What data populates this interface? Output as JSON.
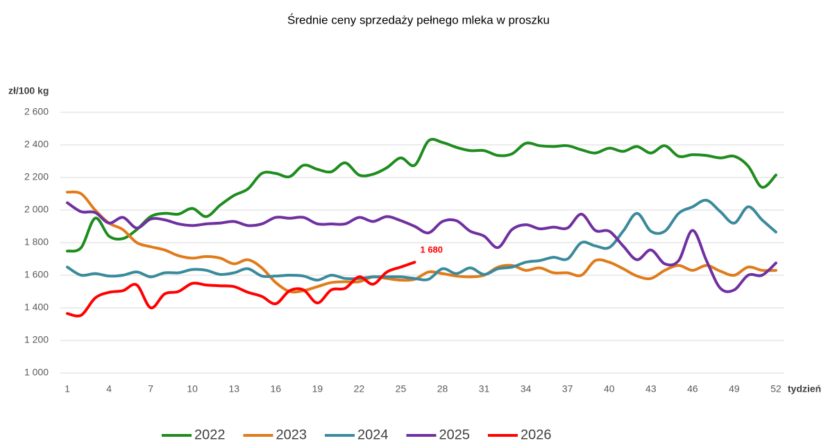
{
  "chart_data": {
    "type": "line",
    "title": "Średnie ceny sprzedaży pełnego mleka w proszku",
    "y_label": "zł/100 kg",
    "x_label": "tydzień",
    "x": [
      1,
      2,
      3,
      4,
      5,
      6,
      7,
      8,
      9,
      10,
      11,
      12,
      13,
      14,
      15,
      16,
      17,
      18,
      19,
      20,
      21,
      22,
      23,
      24,
      25,
      26,
      27,
      28,
      29,
      30,
      31,
      32,
      33,
      34,
      35,
      36,
      37,
      38,
      39,
      40,
      41,
      42,
      43,
      44,
      45,
      46,
      47,
      48,
      49,
      50,
      51,
      52
    ],
    "xlim": [
      1,
      52
    ],
    "xticks": [
      1,
      4,
      7,
      10,
      13,
      16,
      19,
      22,
      25,
      28,
      31,
      34,
      37,
      40,
      43,
      46,
      49,
      52
    ],
    "ylim": [
      1000,
      2600
    ],
    "yticks": [
      {
        "value": 1000,
        "label": "1 000"
      },
      {
        "value": 1200,
        "label": "1 200"
      },
      {
        "value": 1400,
        "label": "1 400"
      },
      {
        "value": 1600,
        "label": "1 600"
      },
      {
        "value": 1800,
        "label": "1 800"
      },
      {
        "value": 2000,
        "label": "2 000"
      },
      {
        "value": 2200,
        "label": "2 200"
      },
      {
        "value": 2400,
        "label": "2 400"
      },
      {
        "value": 2600,
        "label": "2 600"
      }
    ],
    "grid": true,
    "legend": "bottom",
    "series": [
      {
        "name": "2022",
        "color": "#1e8c1e",
        "values": [
          1748,
          1770,
          1950,
          1840,
          1825,
          1880,
          1960,
          1980,
          1975,
          2010,
          1960,
          2030,
          2090,
          2130,
          2225,
          2225,
          2205,
          2275,
          2250,
          2235,
          2290,
          2215,
          2220,
          2260,
          2320,
          2275,
          2425,
          2415,
          2385,
          2365,
          2365,
          2335,
          2345,
          2410,
          2395,
          2390,
          2395,
          2370,
          2350,
          2380,
          2360,
          2390,
          2350,
          2395,
          2330,
          2340,
          2335,
          2320,
          2330,
          2270,
          2140,
          2215
        ]
      },
      {
        "name": "2023",
        "color": "#e07b1a",
        "values": [
          2110,
          2100,
          2000,
          1920,
          1880,
          1800,
          1775,
          1755,
          1720,
          1705,
          1715,
          1705,
          1670,
          1695,
          1645,
          1555,
          1500,
          1505,
          1530,
          1555,
          1560,
          1560,
          1590,
          1580,
          1570,
          1575,
          1620,
          1610,
          1595,
          1590,
          1600,
          1650,
          1660,
          1630,
          1645,
          1615,
          1615,
          1600,
          1690,
          1680,
          1640,
          1595,
          1580,
          1630,
          1660,
          1630,
          1660,
          1625,
          1600,
          1650,
          1630,
          1630
        ]
      },
      {
        "name": "2024",
        "color": "#3a8a9c",
        "values": [
          1650,
          1600,
          1610,
          1595,
          1600,
          1620,
          1590,
          1615,
          1615,
          1635,
          1630,
          1605,
          1615,
          1640,
          1595,
          1595,
          1600,
          1595,
          1570,
          1600,
          1580,
          1580,
          1590,
          1590,
          1590,
          1580,
          1575,
          1640,
          1610,
          1645,
          1605,
          1640,
          1650,
          1680,
          1690,
          1710,
          1700,
          1800,
          1780,
          1770,
          1870,
          1980,
          1870,
          1870,
          1980,
          2020,
          2060,
          1990,
          1920,
          2020,
          1940,
          1865
        ]
      },
      {
        "name": "2025",
        "color": "#7030a0",
        "values": [
          2045,
          1990,
          1985,
          1920,
          1955,
          1890,
          1945,
          1940,
          1915,
          1905,
          1915,
          1920,
          1930,
          1905,
          1915,
          1955,
          1950,
          1955,
          1915,
          1915,
          1915,
          1955,
          1930,
          1960,
          1935,
          1900,
          1860,
          1930,
          1935,
          1870,
          1840,
          1770,
          1880,
          1910,
          1885,
          1895,
          1890,
          1975,
          1875,
          1870,
          1780,
          1695,
          1755,
          1670,
          1690,
          1875,
          1690,
          1520,
          1510,
          1600,
          1600,
          1675
        ]
      },
      {
        "name": "2026",
        "color": "#ff0000",
        "values": [
          1365,
          1355,
          1460,
          1495,
          1505,
          1540,
          1400,
          1485,
          1500,
          1550,
          1540,
          1535,
          1530,
          1495,
          1470,
          1425,
          1505,
          1510,
          1430,
          1510,
          1520,
          1590,
          1545,
          1620,
          1650,
          1680,
          null,
          null,
          null,
          null,
          null,
          null,
          null,
          null,
          null,
          null,
          null,
          null,
          null,
          null,
          null,
          null,
          null,
          null,
          null,
          null,
          null,
          null,
          null,
          null,
          null,
          null
        ],
        "value_labels": [
          null,
          null,
          null,
          null,
          null,
          null,
          null,
          null,
          null,
          null,
          null,
          null,
          null,
          null,
          null,
          null,
          null,
          null,
          null,
          null,
          null,
          null,
          null,
          null,
          null,
          "1 680",
          null,
          null,
          null,
          null,
          null,
          null,
          null,
          null,
          null,
          null,
          null,
          null,
          null,
          null,
          null,
          null,
          null,
          null,
          null,
          null,
          null,
          null,
          null,
          null,
          null,
          null
        ]
      }
    ]
  }
}
